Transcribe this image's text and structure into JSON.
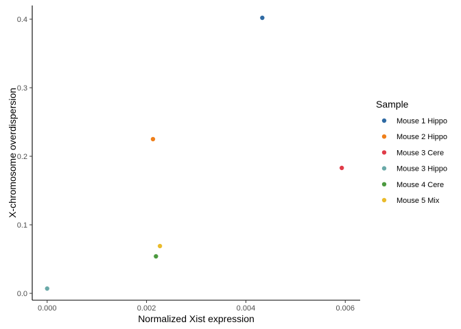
{
  "chart_data": {
    "type": "scatter",
    "xlabel": "Normalized Xist expression",
    "ylabel": "X-chromosome overdispersion",
    "xlim": [
      -0.0003,
      0.0063
    ],
    "ylim": [
      -0.01,
      0.42
    ],
    "x_ticks": [
      0,
      0.002,
      0.004,
      0.006
    ],
    "x_tick_labels": [
      "0.000",
      "0.002",
      "0.004",
      "0.006"
    ],
    "y_ticks": [
      0,
      0.1,
      0.2,
      0.3,
      0.4
    ],
    "y_tick_labels": [
      "0.0",
      "0.1",
      "0.2",
      "0.3",
      "0.4"
    ],
    "grid": false,
    "legend": {
      "title": "Sample",
      "position": "right"
    },
    "series": [
      {
        "name": "Mouse 1 Hippo",
        "color": "#2f6aa3",
        "points": [
          {
            "x": 0.00433,
            "y": 0.402
          }
        ]
      },
      {
        "name": "Mouse 2 Hippo",
        "color": "#ef7f1a",
        "points": [
          {
            "x": 0.00213,
            "y": 0.225
          }
        ]
      },
      {
        "name": "Mouse 3 Cere",
        "color": "#e03b48",
        "points": [
          {
            "x": 0.00593,
            "y": 0.183
          }
        ]
      },
      {
        "name": "Mouse 3 Hippo",
        "color": "#6aa9a8",
        "points": [
          {
            "x": 0.0,
            "y": 0.007
          }
        ]
      },
      {
        "name": "Mouse 4 Cere",
        "color": "#4c9a3f",
        "points": [
          {
            "x": 0.00219,
            "y": 0.054
          }
        ]
      },
      {
        "name": "Mouse 5 Mix",
        "color": "#eabb2b",
        "points": [
          {
            "x": 0.00227,
            "y": 0.069
          }
        ]
      }
    ]
  }
}
